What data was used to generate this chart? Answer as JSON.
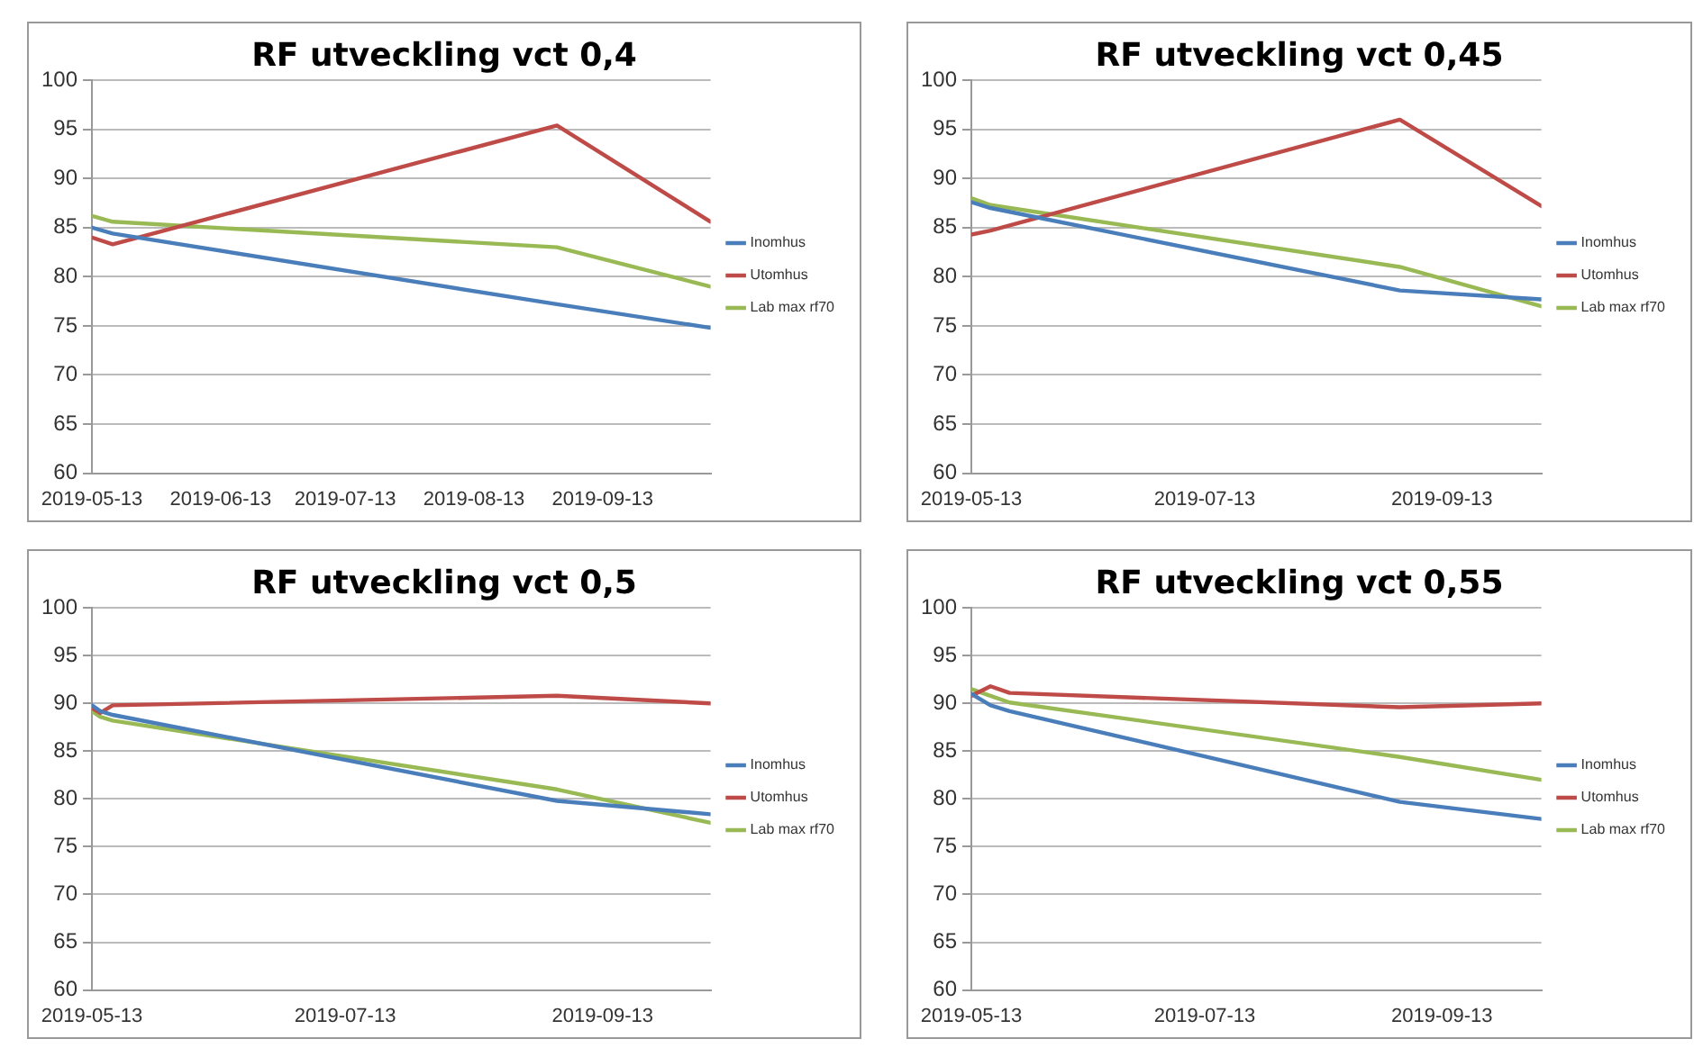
{
  "chart_data": [
    {
      "type": "line",
      "title": "RF utveckling vct 0,4",
      "xlim": [
        "2019-05-13",
        "2019-10-09"
      ],
      "xticks": [
        "2019-05-13",
        "2019-06-13",
        "2019-07-13",
        "2019-08-13",
        "2019-09-13"
      ],
      "ylim": [
        60,
        100
      ],
      "yticks": [
        60,
        65,
        70,
        75,
        80,
        85,
        90,
        95,
        100
      ],
      "grid": "y",
      "legend": "right",
      "marker": "none",
      "line_style": "solid",
      "x": [
        "2019-05-13",
        "2019-05-18",
        "2019-09-02",
        "2019-10-09"
      ],
      "series": [
        {
          "name": "Inomhus",
          "color": "#4a7ebb",
          "values": [
            85,
            84.4,
            77.2,
            74.8
          ]
        },
        {
          "name": "Utomhus",
          "color": "#be4b48",
          "values": [
            84,
            83.3,
            95.4,
            85.6
          ]
        },
        {
          "name": "Lab max rf70",
          "color": "#98b954",
          "values": [
            86.2,
            85.6,
            83,
            79
          ]
        }
      ]
    },
    {
      "type": "line",
      "title": "RF utveckling vct 0,45",
      "xlim": [
        "2019-05-13",
        "2019-10-09"
      ],
      "xticks": [
        "2019-05-13",
        "2019-07-13",
        "2019-09-13"
      ],
      "ylim": [
        60,
        100
      ],
      "yticks": [
        60,
        65,
        70,
        75,
        80,
        85,
        90,
        95,
        100
      ],
      "grid": "y",
      "legend": "right",
      "marker": "none",
      "line_style": "solid",
      "x": [
        "2019-05-13",
        "2019-05-18",
        "2019-09-02",
        "2019-10-09"
      ],
      "series": [
        {
          "name": "Inomhus",
          "color": "#4a7ebb",
          "values": [
            87.6,
            87,
            78.6,
            77.7
          ]
        },
        {
          "name": "Utomhus",
          "color": "#be4b48",
          "values": [
            84.3,
            84.7,
            96,
            87.2
          ]
        },
        {
          "name": "Lab max rf70",
          "color": "#98b954",
          "values": [
            88,
            87.3,
            81,
            77
          ]
        }
      ]
    },
    {
      "type": "line",
      "title": "RF utveckling vct 0,5",
      "xlim": [
        "2019-05-13",
        "2019-10-09"
      ],
      "xticks": [
        "2019-05-13",
        "2019-07-13",
        "2019-09-13"
      ],
      "ylim": [
        60,
        100
      ],
      "yticks": [
        60,
        65,
        70,
        75,
        80,
        85,
        90,
        95,
        100
      ],
      "grid": "y",
      "legend": "right",
      "marker": "none",
      "line_style": "solid",
      "x": [
        "2019-05-13",
        "2019-05-15",
        "2019-05-18",
        "2019-09-02",
        "2019-10-09"
      ],
      "series": [
        {
          "name": "Inomhus",
          "color": "#4a7ebb",
          "values": [
            89.8,
            89.2,
            88.8,
            79.8,
            78.4
          ]
        },
        {
          "name": "Utomhus",
          "color": "#be4b48",
          "values": [
            89.5,
            89,
            89.8,
            90.8,
            90
          ]
        },
        {
          "name": "Lab max rf70",
          "color": "#98b954",
          "values": [
            89.2,
            88.6,
            88.2,
            81,
            77.5
          ]
        }
      ]
    },
    {
      "type": "line",
      "title": "RF utveckling vct 0,55",
      "xlim": [
        "2019-05-13",
        "2019-10-09"
      ],
      "xticks": [
        "2019-05-13",
        "2019-07-13",
        "2019-09-13"
      ],
      "ylim": [
        60,
        100
      ],
      "yticks": [
        60,
        65,
        70,
        75,
        80,
        85,
        90,
        95,
        100
      ],
      "grid": "y",
      "legend": "right",
      "marker": "none",
      "line_style": "solid",
      "x": [
        "2019-05-13",
        "2019-05-18",
        "2019-05-23",
        "2019-09-02",
        "2019-10-09"
      ],
      "series": [
        {
          "name": "Inomhus",
          "color": "#4a7ebb",
          "values": [
            91,
            89.8,
            89.2,
            79.7,
            77.9
          ]
        },
        {
          "name": "Utomhus",
          "color": "#be4b48",
          "values": [
            90.8,
            91.8,
            91.1,
            89.6,
            90
          ]
        },
        {
          "name": "Lab max rf70",
          "color": "#98b954",
          "values": [
            91.5,
            90.8,
            90.1,
            84.4,
            82
          ]
        }
      ]
    }
  ]
}
